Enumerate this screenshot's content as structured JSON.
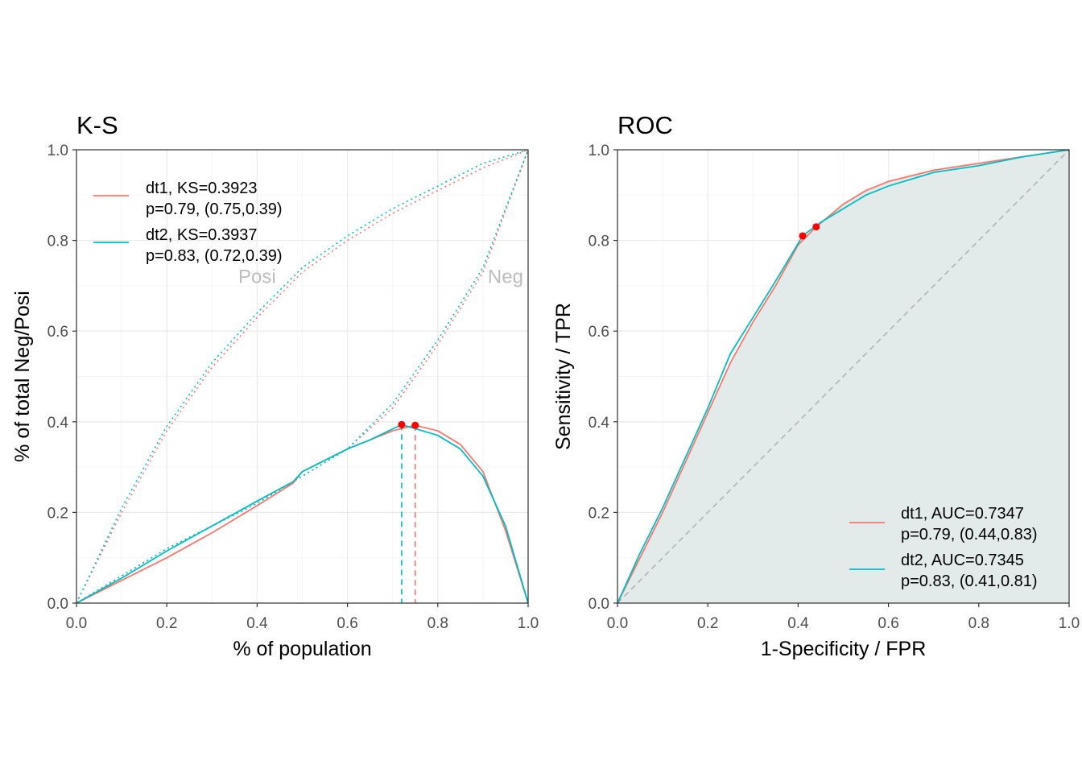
{
  "colors": {
    "dt1": "#F8766D",
    "dt2": "#00BFC4",
    "marker": "#FF0000",
    "auc_fill": "#E2EAEA",
    "diagonal": "#B3B3B3",
    "grid_major": "#EBEBEB",
    "grid_minor": "#F5F5F5"
  },
  "chart_data": [
    {
      "id": "ks",
      "type": "line",
      "title": "K-S",
      "xlabel": "% of population",
      "ylabel": "% of total Neg/Posi",
      "xlim": [
        0,
        1
      ],
      "ylim": [
        0,
        1
      ],
      "grid": true,
      "xticks": [
        "0.0",
        "0.2",
        "0.4",
        "0.6",
        "0.8",
        "1.0"
      ],
      "yticks": [
        "0.0",
        "0.2",
        "0.4",
        "0.6",
        "0.8",
        "1.0"
      ],
      "legend_position": "top-left",
      "legend": [
        {
          "key": "dt1",
          "line1": "dt1, KS=0.3923",
          "line2": "p=0.79, (0.75,0.39)"
        },
        {
          "key": "dt2",
          "line1": "dt2, KS=0.3937",
          "line2": "p=0.83, (0.72,0.39)"
        }
      ],
      "annotations": [
        {
          "text": "Posi",
          "x": 0.4,
          "y": 0.72
        },
        {
          "text": "Neg",
          "x": 0.95,
          "y": 0.72
        }
      ],
      "series": [
        {
          "name": "dt1, KS=0.3923",
          "key": "dt1",
          "ks_curve": [
            [
              0,
              0
            ],
            [
              0.1,
              0.05
            ],
            [
              0.2,
              0.1
            ],
            [
              0.3,
              0.155
            ],
            [
              0.4,
              0.215
            ],
            [
              0.48,
              0.265
            ],
            [
              0.5,
              0.29
            ],
            [
              0.55,
              0.315
            ],
            [
              0.6,
              0.34
            ],
            [
              0.65,
              0.36
            ],
            [
              0.7,
              0.38
            ],
            [
              0.75,
              0.3923
            ],
            [
              0.8,
              0.38
            ],
            [
              0.85,
              0.35
            ],
            [
              0.9,
              0.29
            ],
            [
              0.95,
              0.16
            ],
            [
              1,
              0
            ]
          ],
          "negative_cum": [
            [
              0,
              0
            ],
            [
              0.1,
              0.2
            ],
            [
              0.2,
              0.38
            ],
            [
              0.3,
              0.52
            ],
            [
              0.4,
              0.63
            ],
            [
              0.5,
              0.73
            ],
            [
              0.6,
              0.8
            ],
            [
              0.7,
              0.86
            ],
            [
              0.8,
              0.91
            ],
            [
              0.9,
              0.96
            ],
            [
              1,
              1
            ]
          ],
          "positive_cum": [
            [
              0,
              0
            ],
            [
              0.1,
              0.06
            ],
            [
              0.2,
              0.12
            ],
            [
              0.3,
              0.17
            ],
            [
              0.4,
              0.22
            ],
            [
              0.5,
              0.28
            ],
            [
              0.6,
              0.34
            ],
            [
              0.7,
              0.43
            ],
            [
              0.8,
              0.57
            ],
            [
              0.9,
              0.73
            ],
            [
              1,
              1
            ]
          ],
          "ks_point": [
            0.75,
            0.3923
          ],
          "cutoff": 0.75
        },
        {
          "name": "dt2, KS=0.3937",
          "key": "dt2",
          "ks_curve": [
            [
              0,
              0
            ],
            [
              0.1,
              0.055
            ],
            [
              0.2,
              0.115
            ],
            [
              0.3,
              0.17
            ],
            [
              0.4,
              0.225
            ],
            [
              0.48,
              0.268
            ],
            [
              0.5,
              0.29
            ],
            [
              0.55,
              0.315
            ],
            [
              0.6,
              0.34
            ],
            [
              0.65,
              0.36
            ],
            [
              0.72,
              0.3937
            ],
            [
              0.8,
              0.37
            ],
            [
              0.85,
              0.34
            ],
            [
              0.9,
              0.28
            ],
            [
              0.95,
              0.17
            ],
            [
              1,
              0
            ]
          ],
          "negative_cum": [
            [
              0,
              0
            ],
            [
              0.1,
              0.21
            ],
            [
              0.2,
              0.39
            ],
            [
              0.3,
              0.53
            ],
            [
              0.4,
              0.64
            ],
            [
              0.5,
              0.74
            ],
            [
              0.6,
              0.81
            ],
            [
              0.7,
              0.87
            ],
            [
              0.8,
              0.92
            ],
            [
              0.9,
              0.97
            ],
            [
              1,
              1
            ]
          ],
          "positive_cum": [
            [
              0,
              0
            ],
            [
              0.1,
              0.06
            ],
            [
              0.2,
              0.12
            ],
            [
              0.3,
              0.17
            ],
            [
              0.4,
              0.22
            ],
            [
              0.5,
              0.28
            ],
            [
              0.6,
              0.34
            ],
            [
              0.7,
              0.44
            ],
            [
              0.8,
              0.58
            ],
            [
              0.9,
              0.74
            ],
            [
              1,
              1
            ]
          ],
          "ks_point": [
            0.72,
            0.3937
          ],
          "cutoff": 0.72
        }
      ]
    },
    {
      "id": "roc",
      "type": "line",
      "title": "ROC",
      "xlabel": "1-Specificity / FPR",
      "ylabel": "Sensitivity / TPR",
      "xlim": [
        0,
        1
      ],
      "ylim": [
        0,
        1
      ],
      "grid": true,
      "xticks": [
        "0.0",
        "0.2",
        "0.4",
        "0.6",
        "0.8",
        "1.0"
      ],
      "yticks": [
        "0.0",
        "0.2",
        "0.4",
        "0.6",
        "0.8",
        "1.0"
      ],
      "legend_position": "bottom-right",
      "legend": [
        {
          "key": "dt1",
          "line1": "dt1, AUC=0.7347",
          "line2": "p=0.79, (0.44,0.83)"
        },
        {
          "key": "dt2",
          "line1": "dt2, AUC=0.7345",
          "line2": "p=0.83, (0.41,0.81)"
        }
      ],
      "series": [
        {
          "name": "dt1, AUC=0.7347",
          "key": "dt1",
          "points": [
            [
              0,
              0
            ],
            [
              0.05,
              0.1
            ],
            [
              0.1,
              0.2
            ],
            [
              0.15,
              0.31
            ],
            [
              0.2,
              0.42
            ],
            [
              0.25,
              0.53
            ],
            [
              0.3,
              0.62
            ],
            [
              0.35,
              0.7
            ],
            [
              0.4,
              0.79
            ],
            [
              0.44,
              0.83
            ],
            [
              0.5,
              0.88
            ],
            [
              0.55,
              0.91
            ],
            [
              0.6,
              0.93
            ],
            [
              0.7,
              0.955
            ],
            [
              0.8,
              0.97
            ],
            [
              0.9,
              0.985
            ],
            [
              1,
              1
            ]
          ],
          "point": [
            0.44,
            0.83
          ]
        },
        {
          "name": "dt2, AUC=0.7345",
          "key": "dt2",
          "points": [
            [
              0,
              0
            ],
            [
              0.05,
              0.11
            ],
            [
              0.1,
              0.21
            ],
            [
              0.15,
              0.32
            ],
            [
              0.2,
              0.43
            ],
            [
              0.25,
              0.55
            ],
            [
              0.3,
              0.63
            ],
            [
              0.35,
              0.71
            ],
            [
              0.41,
              0.81
            ],
            [
              0.45,
              0.84
            ],
            [
              0.5,
              0.87
            ],
            [
              0.55,
              0.9
            ],
            [
              0.6,
              0.92
            ],
            [
              0.7,
              0.95
            ],
            [
              0.8,
              0.965
            ],
            [
              0.9,
              0.985
            ],
            [
              1,
              1
            ]
          ],
          "point": [
            0.41,
            0.81
          ]
        }
      ]
    }
  ]
}
